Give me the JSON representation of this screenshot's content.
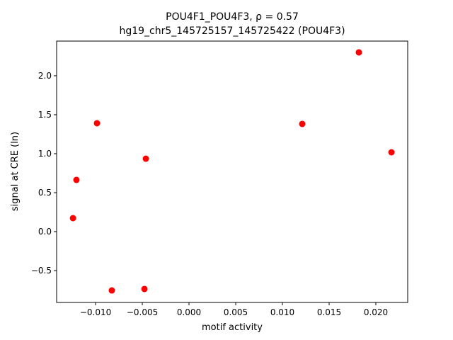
{
  "chart_data": {
    "type": "scatter",
    "title": "POU4F1_POU4F3, ρ = 0.57",
    "subtitle": "hg19_chr5_145725157_145725422 (POU4F3)",
    "x_label": "motif activity",
    "y_label": "signal at CRE (ln)",
    "series": [
      {
        "color": "#ff0000",
        "x": [
          -0.01242,
          -0.01205,
          -0.00985,
          -0.00826,
          -0.00477,
          -0.00462,
          0.01212,
          0.01818,
          0.02167
        ],
        "values": [
          0.173,
          0.664,
          1.391,
          -0.755,
          -0.736,
          0.936,
          1.382,
          2.3,
          1.018
        ]
      }
    ],
    "xlim": [
      -0.01417,
      0.02341
    ],
    "ylim": [
      -0.909,
      2.445
    ],
    "xticks": [
      {
        "value": -0.01,
        "label": "−0.010"
      },
      {
        "value": -0.005,
        "label": "−0.005"
      },
      {
        "value": 0,
        "label": "0.000"
      },
      {
        "value": 0.005,
        "label": "0.005"
      },
      {
        "value": 0.01,
        "label": "0.010"
      },
      {
        "value": 0.015,
        "label": "0.015"
      },
      {
        "value": 0.02,
        "label": "0.020"
      }
    ],
    "yticks": [
      {
        "value": -0.5,
        "label": "−0.5"
      },
      {
        "value": 0,
        "label": "0.0"
      },
      {
        "value": 0.5,
        "label": "0.5"
      },
      {
        "value": 1,
        "label": "1.0"
      },
      {
        "value": 1.5,
        "label": "1.5"
      },
      {
        "value": 2,
        "label": "2.0"
      }
    ]
  }
}
